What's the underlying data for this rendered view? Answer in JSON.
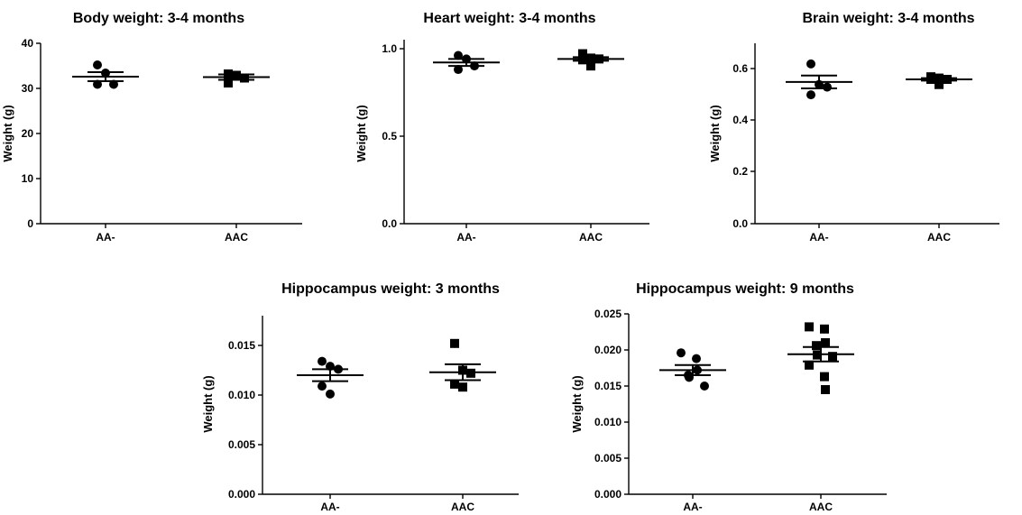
{
  "chart_data": [
    {
      "type": "scatter",
      "title": "Body weight: 3-4 months",
      "ylabel": "Weight (g)",
      "xlabel": "",
      "ylim": [
        0,
        40
      ],
      "yticks": [
        0,
        10,
        20,
        30,
        40
      ],
      "yticklabels": [
        "0",
        "10",
        "20",
        "30",
        "40"
      ],
      "categories": [
        "AA-",
        "AAC"
      ],
      "series": [
        {
          "category": "AA-",
          "marker": "circle",
          "values": [
            35.2,
            33.4,
            30.9,
            30.9
          ],
          "mean": 32.6,
          "sem": 1.0
        },
        {
          "category": "AAC",
          "marker": "square",
          "values": [
            33.2,
            32.9,
            32.3,
            31.2
          ],
          "mean": 32.5,
          "sem": 0.6
        }
      ]
    },
    {
      "type": "scatter",
      "title": "Heart weight: 3-4 months",
      "ylabel": "Weight (g)",
      "xlabel": "",
      "ylim": [
        0,
        1.05
      ],
      "yticks": [
        0,
        0.5,
        1.0
      ],
      "yticklabels": [
        "0.0",
        "0.5",
        "1.0"
      ],
      "categories": [
        "AA-",
        "AAC"
      ],
      "series": [
        {
          "category": "AA-",
          "marker": "circle",
          "values": [
            0.96,
            0.94,
            0.9,
            0.88
          ],
          "mean": 0.92,
          "sem": 0.02
        },
        {
          "category": "AAC",
          "marker": "square",
          "values": [
            0.97,
            0.945,
            0.94,
            0.935,
            0.9
          ],
          "mean": 0.94,
          "sem": 0.01
        }
      ]
    },
    {
      "type": "scatter",
      "title": "Brain weight: 3-4 months",
      "ylabel": "Weight (g)",
      "xlabel": "",
      "ylim": [
        0,
        0.7
      ],
      "yticks": [
        0,
        0.2,
        0.4,
        0.6
      ],
      "yticklabels": [
        "0.0",
        "0.2",
        "0.4",
        "0.6"
      ],
      "categories": [
        "AA-",
        "AAC"
      ],
      "series": [
        {
          "category": "AA-",
          "marker": "circle",
          "values": [
            0.62,
            0.54,
            0.53,
            0.5
          ],
          "mean": 0.55,
          "sem": 0.025
        },
        {
          "category": "AAC",
          "marker": "square",
          "values": [
            0.57,
            0.565,
            0.56,
            0.56,
            0.54
          ],
          "mean": 0.56,
          "sem": 0.005
        }
      ]
    },
    {
      "type": "scatter",
      "title": "Hippocampus weight: 3 months",
      "ylabel": "Weight (g)",
      "xlabel": "",
      "ylim": [
        0,
        0.018
      ],
      "yticks": [
        0,
        0.005,
        0.01,
        0.015
      ],
      "yticklabels": [
        "0.000",
        "0.005",
        "0.010",
        "0.015"
      ],
      "categories": [
        "AA-",
        "AAC"
      ],
      "series": [
        {
          "category": "AA-",
          "marker": "circle",
          "values": [
            0.0134,
            0.0129,
            0.0126,
            0.0109,
            0.0101
          ],
          "mean": 0.012,
          "sem": 0.0006
        },
        {
          "category": "AAC",
          "marker": "square",
          "values": [
            0.0152,
            0.0125,
            0.0122,
            0.0111,
            0.0108
          ],
          "mean": 0.0123,
          "sem": 0.0008
        }
      ]
    },
    {
      "type": "scatter",
      "title": "Hippocampus weight: 9 months",
      "ylabel": "Weight (g)",
      "xlabel": "",
      "ylim": [
        0,
        0.025
      ],
      "yticks": [
        0,
        0.005,
        0.01,
        0.015,
        0.02,
        0.025
      ],
      "yticklabels": [
        "0.000",
        "0.005",
        "0.010",
        "0.015",
        "0.020",
        "0.025"
      ],
      "categories": [
        "AA-",
        "AAC"
      ],
      "series": [
        {
          "category": "AA-",
          "marker": "circle",
          "values": [
            0.0196,
            0.0188,
            0.0172,
            0.0165,
            0.0162,
            0.015
          ],
          "mean": 0.0172,
          "sem": 0.0007
        },
        {
          "category": "AAC",
          "marker": "square",
          "values": [
            0.0232,
            0.0229,
            0.021,
            0.0206,
            0.0193,
            0.0191,
            0.0179,
            0.0163,
            0.0145
          ],
          "mean": 0.0194,
          "sem": 0.001
        }
      ]
    }
  ]
}
